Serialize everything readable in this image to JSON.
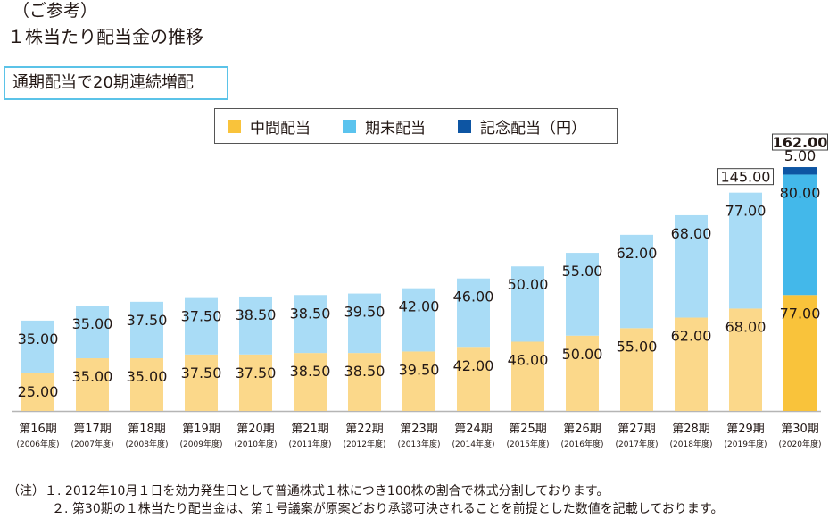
{
  "header": {
    "note": "（ご参考）",
    "title": "１株当たり配当金の推移"
  },
  "badge": {
    "text": "通期配当で20期連続増配"
  },
  "legend": {
    "items": [
      {
        "label": "中間配当",
        "color": "#f9c33b"
      },
      {
        "label": "期末配当",
        "color": "#5bc3ee"
      },
      {
        "label": "記念配当（円）",
        "color": "#0d55a3"
      }
    ]
  },
  "colors": {
    "interim_light": "#fbd88a",
    "final_light": "#a9dcf6",
    "interim_highlight": "#f9c33b",
    "final_highlight": "#43b8ea",
    "commemorative": "#0d55a3",
    "axis": "#b5b5b5",
    "text": "#231815"
  },
  "chart_data": {
    "type": "bar",
    "stacked": true,
    "categories": [
      "第16期",
      "第17期",
      "第18期",
      "第19期",
      "第20期",
      "第21期",
      "第22期",
      "第23期",
      "第24期",
      "第25期",
      "第26期",
      "第27期",
      "第28期",
      "第29期",
      "第30期"
    ],
    "category_sublabels": [
      "(2006年度)",
      "(2007年度)",
      "(2008年度)",
      "(2009年度)",
      "(2010年度)",
      "(2011年度)",
      "(2012年度)",
      "(2013年度)",
      "(2014年度)",
      "(2015年度)",
      "(2016年度)",
      "(2017年度)",
      "(2018年度)",
      "(2019年度)",
      "(2020年度)"
    ],
    "series": [
      {
        "name": "中間配当",
        "values": [
          25.0,
          35.0,
          35.0,
          37.5,
          37.5,
          38.5,
          38.5,
          39.5,
          42.0,
          46.0,
          50.0,
          55.0,
          62.0,
          68.0,
          77.0
        ],
        "labels": [
          "25.00",
          "35.00",
          "35.00",
          "37.50",
          "37.50",
          "38.50",
          "38.50",
          "39.50",
          "42.00",
          "46.00",
          "50.00",
          "55.00",
          "62.00",
          "68.00",
          "77.00"
        ]
      },
      {
        "name": "期末配当",
        "values": [
          35.0,
          35.0,
          37.5,
          37.5,
          38.5,
          38.5,
          39.5,
          42.0,
          46.0,
          50.0,
          55.0,
          62.0,
          68.0,
          77.0,
          80.0
        ],
        "labels": [
          "35.00",
          "35.00",
          "37.50",
          "37.50",
          "38.50",
          "38.50",
          "39.50",
          "42.00",
          "46.00",
          "50.00",
          "55.00",
          "62.00",
          "68.00",
          "77.00",
          "80.00"
        ]
      },
      {
        "name": "記念配当（円）",
        "values": [
          0,
          0,
          0,
          0,
          0,
          0,
          0,
          0,
          0,
          0,
          0,
          0,
          0,
          0,
          5.0
        ],
        "labels": [
          "",
          "",
          "",
          "",
          "",
          "",
          "",
          "",
          "",
          "",
          "",
          "",
          "",
          "",
          "5.00"
        ]
      }
    ],
    "annotations": [
      {
        "index": 13,
        "text": "145.00",
        "bold": false
      },
      {
        "index": 14,
        "text": "162.00",
        "bold": true
      }
    ],
    "highlight_index": 14,
    "ylim": [
      0,
      165
    ],
    "grid": false,
    "legend_position": "top"
  },
  "notes": [
    {
      "prefix": "（注）１.",
      "text": "2012年10月１日を効力発生日として普通株式１株につき100株の割合で株式分割しております。"
    },
    {
      "prefix": "２.",
      "text": "第30期の１株当たり配当金は、第１号議案が原案どおり承認可決されることを前提とした数値を記載しております。"
    }
  ]
}
